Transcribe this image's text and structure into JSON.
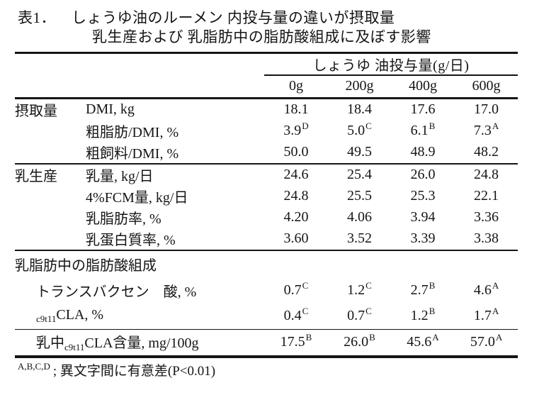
{
  "title": {
    "number": "表1．",
    "line1": "しょうゆ油のルーメン 内投与量の違いが摂取量",
    "line2": "乳生産および 乳脂肪中の脂肪酸組成に及ぼす影響"
  },
  "table": {
    "span_header": "しょうゆ 油投与量(g/日)",
    "columns": [
      "0g",
      "200g",
      "400g",
      "600g"
    ],
    "sections": [
      {
        "label": "摂取量",
        "rows": [
          {
            "label": [
              {
                "t": "DMI, kg"
              }
            ],
            "values": [
              [
                "18.1",
                ""
              ],
              [
                "18.4",
                ""
              ],
              [
                "17.6",
                ""
              ],
              [
                "17.0",
                ""
              ]
            ]
          },
          {
            "label": [
              {
                "t": "粗脂肪/DMI, %"
              }
            ],
            "values": [
              [
                "3.9",
                "D"
              ],
              [
                "5.0",
                "C"
              ],
              [
                "6.1",
                "B"
              ],
              [
                "7.3",
                "A"
              ]
            ]
          },
          {
            "label": [
              {
                "t": "粗飼料/DMI, %"
              }
            ],
            "values": [
              [
                "50.0",
                ""
              ],
              [
                "49.5",
                ""
              ],
              [
                "48.9",
                ""
              ],
              [
                "48.2",
                ""
              ]
            ]
          }
        ]
      },
      {
        "label": "乳生産",
        "rows": [
          {
            "label": [
              {
                "t": "乳量, kg/日"
              }
            ],
            "values": [
              [
                "24.6",
                ""
              ],
              [
                "25.4",
                ""
              ],
              [
                "26.0",
                ""
              ],
              [
                "24.8",
                ""
              ]
            ]
          },
          {
            "label": [
              {
                "t": "4%FCM量, kg/日"
              }
            ],
            "values": [
              [
                "24.8",
                ""
              ],
              [
                "25.5",
                ""
              ],
              [
                "25.3",
                ""
              ],
              [
                "22.1",
                ""
              ]
            ]
          },
          {
            "label": [
              {
                "t": "乳脂肪率, %"
              }
            ],
            "values": [
              [
                "4.20",
                ""
              ],
              [
                "4.06",
                ""
              ],
              [
                "3.94",
                ""
              ],
              [
                "3.36",
                ""
              ]
            ]
          },
          {
            "label": [
              {
                "t": "乳蛋白質率, %"
              }
            ],
            "values": [
              [
                "3.60",
                ""
              ],
              [
                "3.52",
                ""
              ],
              [
                "3.39",
                ""
              ],
              [
                "3.38",
                ""
              ]
            ]
          }
        ]
      },
      {
        "label": "乳脂肪中の脂肪酸組成",
        "label_row": true,
        "tall": true,
        "rows": [
          {
            "label": [
              {
                "t": "トランスバクセン　酸, %"
              }
            ],
            "values": [
              [
                "0.7",
                "C"
              ],
              [
                "1.2",
                "C"
              ],
              [
                "2.7",
                "B"
              ],
              [
                "4.6",
                "A"
              ]
            ]
          },
          {
            "label": [
              {
                "t": "c9t11",
                "sub": true
              },
              {
                "t": "CLA, %"
              }
            ],
            "values": [
              [
                "0.4",
                "C"
              ],
              [
                "0.7",
                "C"
              ],
              [
                "1.2",
                "B"
              ],
              [
                "1.7",
                "A"
              ]
            ]
          },
          {
            "label": [
              {
                "t": "乳中"
              },
              {
                "t": "c9t11",
                "sub": true
              },
              {
                "t": "CLA含量, mg/100g"
              }
            ],
            "rule": true,
            "values": [
              [
                "17.5",
                "B"
              ],
              [
                "26.0",
                "B"
              ],
              [
                "45.6",
                "A"
              ],
              [
                "57.0",
                "A"
              ]
            ]
          }
        ]
      }
    ]
  },
  "footnote": {
    "sup": "A,B,C,D",
    "text": "; 異文字間に有意差(P<0.01)"
  }
}
